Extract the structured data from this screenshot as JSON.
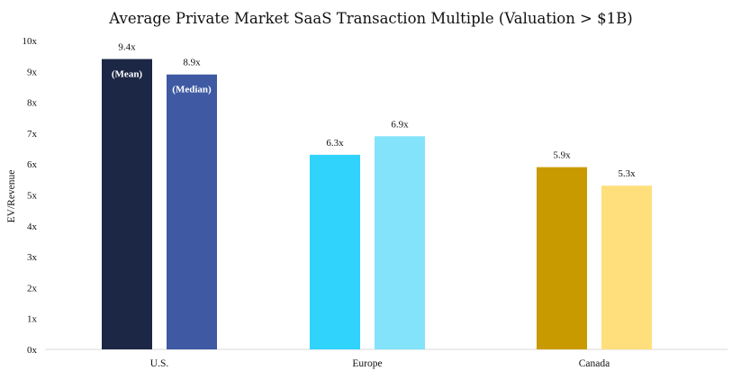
{
  "chart_data": {
    "type": "bar",
    "title": "Average Private Market SaaS Transaction Multiple (Valuation > $1B)",
    "ylabel": "EV/Revenue",
    "xlabel": "",
    "ylim": [
      0,
      10
    ],
    "yticks": [
      "0x",
      "1x",
      "2x",
      "3x",
      "4x",
      "5x",
      "6x",
      "7x",
      "8x",
      "9x",
      "10x"
    ],
    "grid": false,
    "legend": "none",
    "categories": [
      "U.S.",
      "Europe",
      "Canada"
    ],
    "series": [
      {
        "values": [
          9.4,
          6.3,
          5.9
        ],
        "labels": [
          "9.4x",
          "6.3x",
          "5.9x"
        ],
        "colors": [
          "#1c2745",
          "#2fd3fc",
          "#c99a00"
        ]
      },
      {
        "values": [
          8.9,
          6.9,
          5.3
        ],
        "labels": [
          "8.9x",
          "6.9x",
          "5.3x"
        ],
        "colors": [
          "#3f5aa3",
          "#82e3fb",
          "#ffdf7c"
        ]
      }
    ],
    "annotations": [
      {
        "category": 0,
        "series": 0,
        "text": "(Mean)"
      },
      {
        "category": 0,
        "series": 1,
        "text": "(Median)"
      }
    ]
  }
}
